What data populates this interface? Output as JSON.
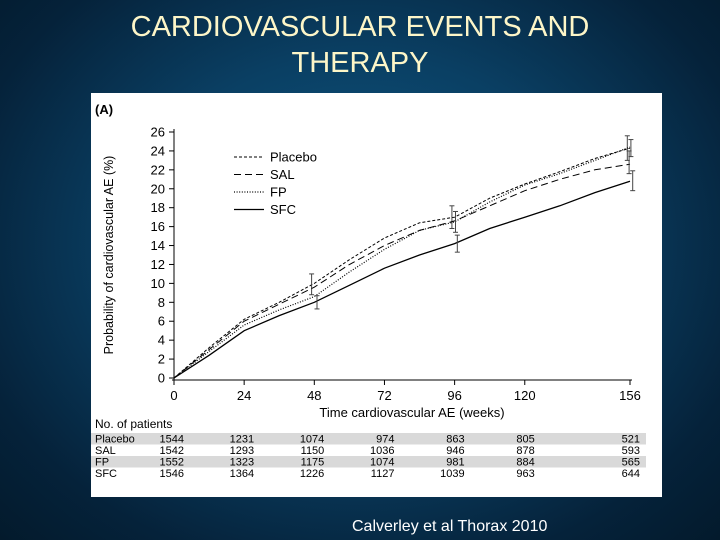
{
  "slide": {
    "title_line1": "CARDIOVASCULAR EVENTS AND",
    "title_line2": "THERAPY",
    "credit": "Calverley et al Thorax 2010"
  },
  "colors": {
    "title": "#fdf6c8",
    "background": "#0a3f63",
    "panel": "#ffffff",
    "stripe": "#d9d9d9"
  },
  "chart_data": {
    "type": "line",
    "panel_label": "(A)",
    "title": "",
    "xlabel": "Time cardiovascular AE (weeks)",
    "ylabel": "Probability of cardiovascular AE (%)",
    "xlim": [
      0,
      156
    ],
    "ylim": [
      0,
      26
    ],
    "xticks": [
      0,
      24,
      48,
      72,
      96,
      120,
      156
    ],
    "yticks": [
      0,
      2,
      4,
      6,
      8,
      10,
      12,
      14,
      16,
      18,
      20,
      22,
      24,
      26
    ],
    "legend_position": "top-left",
    "series": [
      {
        "name": "Placebo",
        "style": "dashed-fine",
        "x": [
          0,
          12,
          24,
          36,
          48,
          60,
          72,
          84,
          96,
          108,
          120,
          132,
          144,
          156
        ],
        "y": [
          0,
          3.2,
          6.2,
          8.0,
          10.0,
          12.5,
          14.8,
          16.4,
          17.0,
          19.0,
          20.5,
          21.8,
          23.2,
          24.3
        ],
        "error_bars": [
          {
            "x": 48,
            "low": 8.8,
            "high": 11.0
          },
          {
            "x": 96,
            "low": 15.8,
            "high": 18.2
          },
          {
            "x": 156,
            "low": 23.0,
            "high": 25.6
          }
        ]
      },
      {
        "name": "SAL",
        "style": "dashed-long",
        "x": [
          0,
          12,
          24,
          36,
          48,
          60,
          72,
          84,
          96,
          108,
          120,
          132,
          144,
          156
        ],
        "y": [
          0,
          3.0,
          6.0,
          7.8,
          9.6,
          12.0,
          14.0,
          15.6,
          16.6,
          18.2,
          19.8,
          21.0,
          22.0,
          22.6
        ],
        "error_bars": [
          {
            "x": 156,
            "low": 21.6,
            "high": 24.0
          }
        ]
      },
      {
        "name": "FP",
        "style": "dotted",
        "x": [
          0,
          12,
          24,
          36,
          48,
          60,
          72,
          84,
          96,
          108,
          120,
          132,
          144,
          156
        ],
        "y": [
          0,
          2.8,
          5.6,
          7.2,
          8.6,
          11.2,
          13.6,
          15.6,
          16.5,
          18.6,
          20.4,
          21.6,
          23.0,
          24.4
        ],
        "error_bars": [
          {
            "x": 96,
            "low": 15.4,
            "high": 17.6
          },
          {
            "x": 156,
            "low": 23.4,
            "high": 25.2
          }
        ]
      },
      {
        "name": "SFC",
        "style": "solid",
        "x": [
          0,
          12,
          24,
          36,
          48,
          60,
          72,
          84,
          96,
          108,
          120,
          132,
          144,
          156
        ],
        "y": [
          0,
          2.4,
          5.0,
          6.6,
          8.0,
          9.8,
          11.6,
          13.0,
          14.2,
          15.8,
          17.0,
          18.2,
          19.6,
          20.8
        ],
        "error_bars": [
          {
            "x": 48,
            "low": 7.3,
            "high": 8.7
          },
          {
            "x": 96,
            "low": 13.3,
            "high": 15.1
          },
          {
            "x": 156,
            "low": 19.8,
            "high": 21.9
          }
        ]
      }
    ],
    "patients_table": {
      "header": "No. of patients",
      "weeks": [
        0,
        24,
        48,
        72,
        96,
        120,
        156
      ],
      "rows": [
        {
          "label": "Placebo",
          "values": [
            1544,
            1231,
            1074,
            974,
            863,
            805,
            521
          ]
        },
        {
          "label": "SAL",
          "values": [
            1542,
            1293,
            1150,
            1036,
            946,
            878,
            593
          ]
        },
        {
          "label": "FP",
          "values": [
            1552,
            1323,
            1175,
            1074,
            981,
            884,
            565
          ]
        },
        {
          "label": "SFC",
          "values": [
            1546,
            1364,
            1226,
            1127,
            1039,
            963,
            644
          ]
        }
      ]
    }
  }
}
